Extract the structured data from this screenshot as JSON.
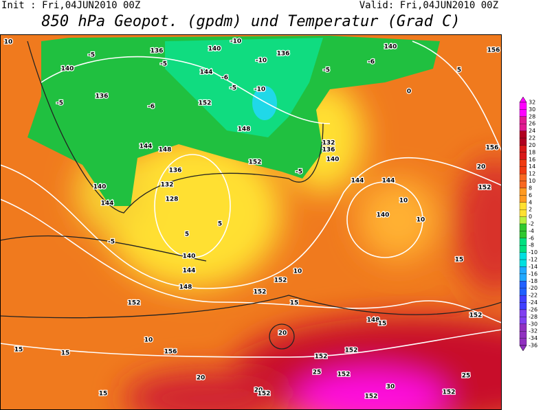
{
  "header": {
    "init": "Init : Fri,04JUN2010 00Z",
    "valid": "Valid: Fri,04JUN2010 00Z",
    "title": "850 hPa Geopot. (gpdm) und Temperatur (Grad C)"
  },
  "legend": {
    "ticks": [
      32,
      30,
      28,
      26,
      24,
      22,
      20,
      18,
      16,
      14,
      12,
      10,
      8,
      6,
      4,
      2,
      0,
      -2,
      -4,
      -6,
      -8,
      -10,
      -12,
      -14,
      -16,
      -18,
      -20,
      -22,
      -24,
      -26,
      -28,
      -30,
      -32,
      -34,
      -36
    ]
  },
  "map": {
    "labels": [
      "10",
      "140",
      "-5",
      "136",
      "-5",
      "140",
      "-10",
      "136",
      "-10",
      "-5",
      "-6",
      "140",
      "156",
      "-5",
      "136",
      "144",
      "-6",
      "-5",
      "-10",
      "152",
      "-6",
      "0",
      "5",
      "144",
      "148",
      "148",
      "132",
      "136",
      "140",
      "152",
      "-5",
      "156",
      "20",
      "140",
      "136",
      "132",
      "128",
      "144",
      "144",
      "144",
      "152",
      "10",
      "140",
      "10",
      "5",
      "5",
      "-5",
      "140",
      "144",
      "148",
      "152",
      "10",
      "15",
      "152",
      "15",
      "152",
      "148",
      "15",
      "152",
      "20",
      "10",
      "156",
      "15",
      "15",
      "20",
      "152",
      "152",
      "25",
      "152",
      "25",
      "15",
      "20",
      "152",
      "152",
      "30",
      "152"
    ]
  }
}
